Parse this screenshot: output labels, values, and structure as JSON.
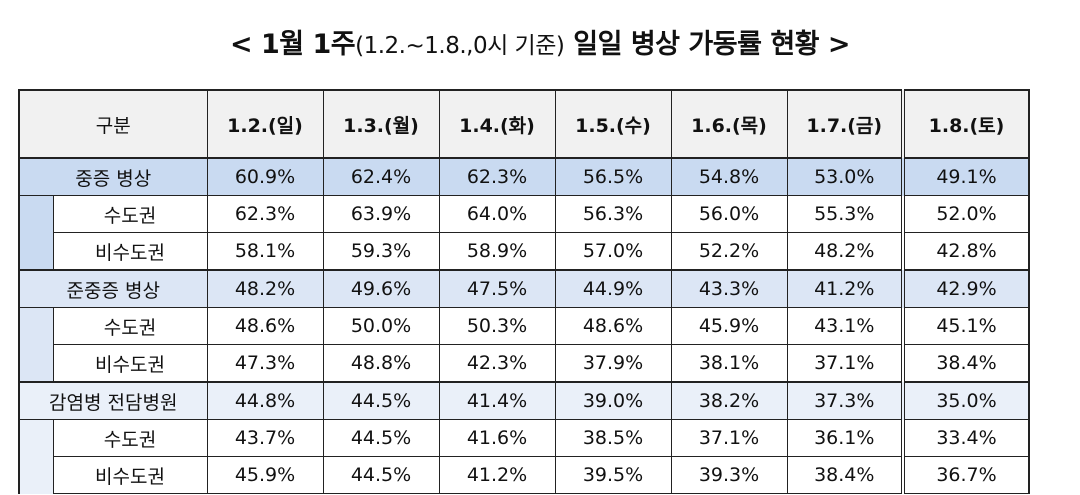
{
  "title": {
    "prefix": "< 1월 1주",
    "middle": "(1.2.~1.8.,0시 기준)",
    "suffix": " 일일 병상 가동률 현황 >"
  },
  "columns": [
    "구분",
    "1.2.(일)",
    "1.3.(월)",
    "1.4.(화)",
    "1.5.(수)",
    "1.6.(목)",
    "1.7.(금)",
    "1.8.(토)"
  ],
  "groups": [
    {
      "label": "중증 병상",
      "values": [
        "60.9%",
        "62.4%",
        "62.3%",
        "56.5%",
        "54.8%",
        "53.0%",
        "49.1%"
      ],
      "rows": [
        {
          "label": "수도권",
          "values": [
            "62.3%",
            "63.9%",
            "64.0%",
            "56.3%",
            "56.0%",
            "55.3%",
            "52.0%"
          ]
        },
        {
          "label": "비수도권",
          "values": [
            "58.1%",
            "59.3%",
            "58.9%",
            "57.0%",
            "52.2%",
            "48.2%",
            "42.8%"
          ]
        }
      ]
    },
    {
      "label": "준중증 병상",
      "values": [
        "48.2%",
        "49.6%",
        "47.5%",
        "44.9%",
        "43.3%",
        "41.2%",
        "42.9%"
      ],
      "rows": [
        {
          "label": "수도권",
          "values": [
            "48.6%",
            "50.0%",
            "50.3%",
            "48.6%",
            "45.9%",
            "43.1%",
            "45.1%"
          ]
        },
        {
          "label": "비수도권",
          "values": [
            "47.3%",
            "48.8%",
            "42.3%",
            "37.9%",
            "38.1%",
            "37.1%",
            "38.4%"
          ]
        }
      ]
    },
    {
      "label": "감염병 전담병원",
      "values": [
        "44.8%",
        "44.5%",
        "41.4%",
        "39.0%",
        "38.2%",
        "37.3%",
        "35.0%"
      ],
      "rows": [
        {
          "label": "수도권",
          "values": [
            "43.7%",
            "44.5%",
            "41.6%",
            "38.5%",
            "37.1%",
            "36.1%",
            "33.4%"
          ]
        },
        {
          "label": "비수도권",
          "values": [
            "45.9%",
            "44.5%",
            "41.2%",
            "39.5%",
            "39.3%",
            "38.4%",
            "36.7%"
          ]
        }
      ]
    }
  ]
}
